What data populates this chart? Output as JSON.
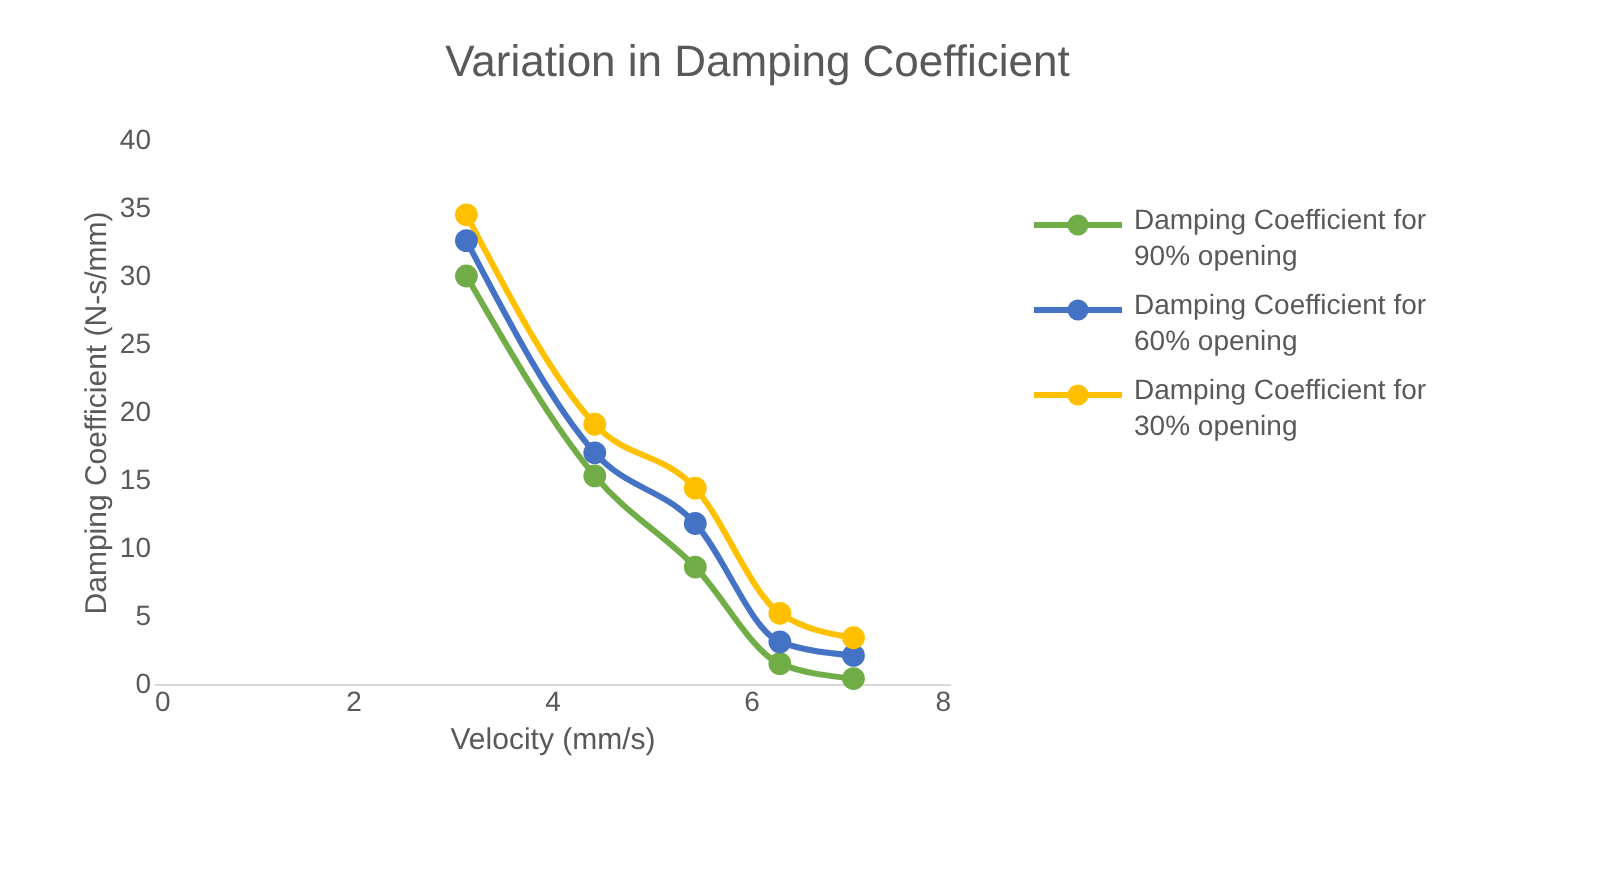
{
  "chart_data": {
    "type": "line",
    "title": "Variation in Damping Coefficient",
    "xlabel": "Velocity (mm/s)",
    "ylabel": "Damping Coefficient (N-s/mm)",
    "x": [
      3.14,
      4.43,
      5.44,
      6.29,
      7.03
    ],
    "series": [
      {
        "name": "Damping Coefficient for 90% opening",
        "color": "#70ad47",
        "values": [
          30.0,
          15.3,
          8.6,
          1.5,
          0.4
        ]
      },
      {
        "name": "Damping Coefficient for 60% opening",
        "color": "#4472c4",
        "values": [
          32.6,
          17.0,
          11.8,
          3.1,
          2.1
        ]
      },
      {
        "name": "Damping Coefficient for 30% opening",
        "color": "#ffc000",
        "values": [
          34.5,
          19.1,
          14.4,
          5.2,
          3.4
        ]
      }
    ],
    "xlim": [
      0,
      8
    ],
    "xticks": [
      0,
      2,
      4,
      6,
      8
    ],
    "ylim": [
      0,
      40
    ],
    "yticks": [
      0,
      5,
      10,
      15,
      20,
      25,
      30,
      35,
      40
    ],
    "grid": false,
    "legend": "right",
    "marker": "circle",
    "line_style": "solid"
  }
}
